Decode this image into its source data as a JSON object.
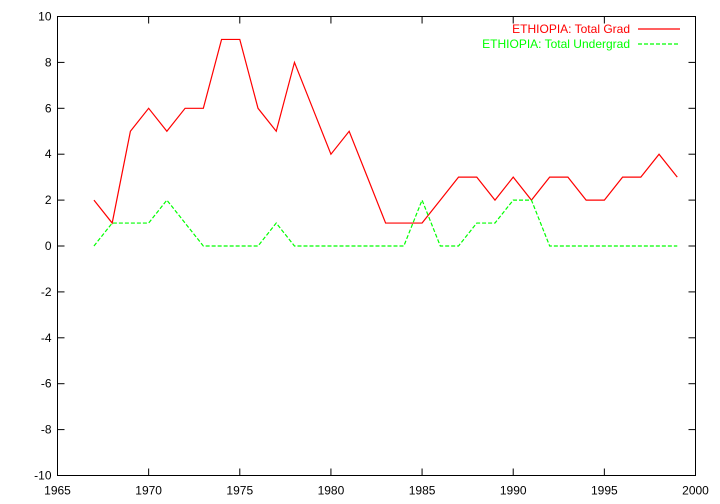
{
  "chart_data": {
    "type": "line",
    "title": "",
    "xlabel": "",
    "ylabel": "",
    "xlim": [
      1965,
      2000
    ],
    "ylim": [
      -10,
      10
    ],
    "x_ticks": [
      1965,
      1970,
      1975,
      1980,
      1985,
      1990,
      1995,
      2000
    ],
    "y_ticks": [
      -10,
      -8,
      -6,
      -4,
      -2,
      0,
      2,
      4,
      6,
      8,
      10
    ],
    "grid": false,
    "legend_position": "top-right",
    "x": [
      1967,
      1968,
      1969,
      1970,
      1971,
      1972,
      1973,
      1974,
      1975,
      1976,
      1977,
      1978,
      1979,
      1980,
      1981,
      1982,
      1983,
      1984,
      1985,
      1986,
      1987,
      1988,
      1989,
      1990,
      1991,
      1992,
      1993,
      1994,
      1995,
      1996,
      1997,
      1998,
      1999
    ],
    "series": [
      {
        "name": "ETHIOPIA: Total Grad",
        "color": "#ff0000",
        "dash": "solid",
        "values": [
          2,
          1,
          5,
          6,
          5,
          6,
          6,
          9,
          9,
          6,
          5,
          8,
          6,
          4,
          5,
          3,
          1,
          1,
          1,
          2,
          3,
          3,
          2,
          3,
          2,
          3,
          3,
          2,
          2,
          3,
          3,
          4,
          3
        ]
      },
      {
        "name": "ETHIOPIA: Total Undergrad",
        "color": "#00ff00",
        "dash": "dashed",
        "values": [
          0,
          1,
          1,
          1,
          2,
          1,
          0,
          0,
          0,
          0,
          1,
          0,
          0,
          0,
          0,
          0,
          0,
          0,
          2,
          0,
          0,
          1,
          1,
          2,
          2,
          0,
          0,
          0,
          0,
          0,
          0,
          0,
          0
        ]
      }
    ]
  }
}
